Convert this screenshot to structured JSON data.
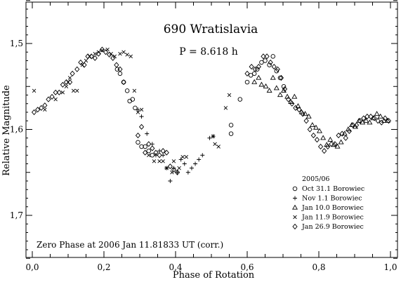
{
  "chart_data": {
    "type": "scatter",
    "title": "690 Wratislavia",
    "subtitle": "P = 8.618 h",
    "xlabel": "Phase of Rotation",
    "ylabel": "Relative Magnitude",
    "xlim": [
      0.0,
      1.0
    ],
    "ylim": [
      1.75,
      1.45
    ],
    "y_inverted": true,
    "xticks": [
      0.0,
      0.2,
      0.4,
      0.6,
      0.8,
      1.0
    ],
    "xtick_labels": [
      "0,0",
      "0,2",
      "0,4",
      "0,6",
      "0,8",
      "1,0"
    ],
    "yticks": [
      1.5,
      1.6,
      1.7
    ],
    "ytick_labels": [
      "1,5",
      "1,6",
      "1,7"
    ],
    "legend_title": "2005/06",
    "legend_placement": "bottom-right",
    "annotation": "Zero Phase at 2006 Jan 11.81833 UT (corr.)",
    "series": [
      {
        "name": "Oct 31.1 Borowiec",
        "marker": "circle",
        "points": [
          [
            0.237,
            1.53
          ],
          [
            0.245,
            1.535
          ],
          [
            0.255,
            1.545
          ],
          [
            0.265,
            1.555
          ],
          [
            0.272,
            1.567
          ],
          [
            0.28,
            1.565
          ],
          [
            0.287,
            1.575
          ],
          [
            0.295,
            1.615
          ],
          [
            0.305,
            1.62
          ],
          [
            0.315,
            1.62
          ],
          [
            0.325,
            1.625
          ],
          [
            0.335,
            1.63
          ],
          [
            0.555,
            1.595
          ],
          [
            0.555,
            1.605
          ],
          [
            0.58,
            1.565
          ],
          [
            0.6,
            1.545
          ],
          [
            0.61,
            1.537
          ],
          [
            0.62,
            1.535
          ],
          [
            0.628,
            1.53
          ],
          [
            0.64,
            1.522
          ],
          [
            0.65,
            1.52
          ],
          [
            0.662,
            1.525
          ],
          [
            0.672,
            1.515
          ],
          [
            0.682,
            1.532
          ],
          [
            0.692,
            1.54
          ],
          [
            0.702,
            1.55
          ]
        ]
      },
      {
        "name": "Nov 1.1 Borowiec",
        "marker": "plus",
        "points": [
          [
            0.295,
            1.577
          ],
          [
            0.305,
            1.585
          ],
          [
            0.32,
            1.605
          ],
          [
            0.335,
            1.617
          ],
          [
            0.345,
            1.63
          ],
          [
            0.355,
            1.625
          ],
          [
            0.365,
            1.63
          ],
          [
            0.375,
            1.645
          ],
          [
            0.385,
            1.66
          ],
          [
            0.395,
            1.645
          ],
          [
            0.405,
            1.65
          ],
          [
            0.415,
            1.635
          ],
          [
            0.425,
            1.64
          ],
          [
            0.435,
            1.65
          ],
          [
            0.445,
            1.645
          ],
          [
            0.455,
            1.64
          ],
          [
            0.465,
            1.635
          ],
          [
            0.475,
            1.63
          ],
          [
            0.495,
            1.61
          ],
          [
            0.505,
            1.608
          ]
        ]
      },
      {
        "name": "Jan 10.0 Borowiec",
        "marker": "triangle",
        "points": [
          [
            0.62,
            1.545
          ],
          [
            0.632,
            1.54
          ],
          [
            0.64,
            1.548
          ],
          [
            0.652,
            1.55
          ],
          [
            0.662,
            1.555
          ],
          [
            0.672,
            1.54
          ],
          [
            0.682,
            1.552
          ],
          [
            0.692,
            1.56
          ],
          [
            0.702,
            1.555
          ],
          [
            0.712,
            1.562
          ],
          [
            0.722,
            1.568
          ],
          [
            0.732,
            1.562
          ],
          [
            0.742,
            1.573
          ],
          [
            0.752,
            1.58
          ],
          [
            0.762,
            1.582
          ],
          [
            0.772,
            1.585
          ],
          [
            0.782,
            1.595
          ],
          [
            0.792,
            1.598
          ],
          [
            0.802,
            1.602
          ],
          [
            0.812,
            1.61
          ],
          [
            0.822,
            1.618
          ],
          [
            0.832,
            1.612
          ],
          [
            0.842,
            1.618
          ],
          [
            0.852,
            1.62
          ],
          [
            0.862,
            1.615
          ],
          [
            0.872,
            1.605
          ],
          [
            0.882,
            1.6
          ],
          [
            0.892,
            1.595
          ],
          [
            0.902,
            1.597
          ],
          [
            0.912,
            1.59
          ],
          [
            0.922,
            1.592
          ],
          [
            0.932,
            1.59
          ],
          [
            0.942,
            1.592
          ],
          [
            0.952,
            1.587
          ],
          [
            0.962,
            1.582
          ],
          [
            0.972,
            1.585
          ],
          [
            0.982,
            1.59
          ],
          [
            0.992,
            1.59
          ]
        ]
      },
      {
        "name": "Jan 11.9 Borowiec",
        "marker": "x",
        "points": [
          [
            0.005,
            1.555
          ],
          [
            0.035,
            1.577
          ],
          [
            0.065,
            1.565
          ],
          [
            0.085,
            1.557
          ],
          [
            0.095,
            1.55
          ],
          [
            0.1,
            1.545
          ],
          [
            0.105,
            1.54
          ],
          [
            0.115,
            1.555
          ],
          [
            0.125,
            1.555
          ],
          [
            0.14,
            1.525
          ],
          [
            0.15,
            1.52
          ],
          [
            0.16,
            1.515
          ],
          [
            0.175,
            1.512
          ],
          [
            0.185,
            1.51
          ],
          [
            0.195,
            1.508
          ],
          [
            0.21,
            1.507
          ],
          [
            0.22,
            1.512
          ],
          [
            0.23,
            1.515
          ],
          [
            0.245,
            1.512
          ],
          [
            0.255,
            1.51
          ],
          [
            0.265,
            1.513
          ],
          [
            0.275,
            1.515
          ],
          [
            0.285,
            1.555
          ],
          [
            0.295,
            1.58
          ],
          [
            0.305,
            1.577
          ],
          [
            0.325,
            1.63
          ],
          [
            0.34,
            1.637
          ],
          [
            0.355,
            1.637
          ],
          [
            0.365,
            1.637
          ],
          [
            0.375,
            1.645
          ],
          [
            0.39,
            1.65
          ],
          [
            0.395,
            1.637
          ],
          [
            0.41,
            1.645
          ],
          [
            0.42,
            1.632
          ],
          [
            0.43,
            1.632
          ],
          [
            0.505,
            1.608
          ],
          [
            0.51,
            1.617
          ],
          [
            0.52,
            1.62
          ],
          [
            0.54,
            1.575
          ],
          [
            0.55,
            1.56
          ]
        ]
      },
      {
        "name": "Jan 26.9 Borowiec",
        "marker": "diamond",
        "points": [
          [
            0.005,
            1.58
          ],
          [
            0.015,
            1.577
          ],
          [
            0.025,
            1.575
          ],
          [
            0.035,
            1.572
          ],
          [
            0.045,
            1.565
          ],
          [
            0.055,
            1.562
          ],
          [
            0.065,
            1.557
          ],
          [
            0.075,
            1.557
          ],
          [
            0.085,
            1.548
          ],
          [
            0.095,
            1.545
          ],
          [
            0.105,
            1.545
          ],
          [
            0.112,
            1.535
          ],
          [
            0.125,
            1.53
          ],
          [
            0.135,
            1.522
          ],
          [
            0.145,
            1.525
          ],
          [
            0.155,
            1.515
          ],
          [
            0.165,
            1.515
          ],
          [
            0.175,
            1.517
          ],
          [
            0.185,
            1.512
          ],
          [
            0.195,
            1.507
          ],
          [
            0.205,
            1.51
          ],
          [
            0.215,
            1.513
          ],
          [
            0.225,
            1.517
          ],
          [
            0.235,
            1.525
          ],
          [
            0.245,
            1.53
          ],
          [
            0.255,
            1.545
          ],
          [
            0.295,
            1.607
          ],
          [
            0.305,
            1.597
          ],
          [
            0.315,
            1.627
          ],
          [
            0.325,
            1.617
          ],
          [
            0.335,
            1.622
          ],
          [
            0.345,
            1.627
          ],
          [
            0.355,
            1.63
          ],
          [
            0.365,
            1.625
          ],
          [
            0.375,
            1.627
          ],
          [
            0.385,
            1.643
          ],
          [
            0.395,
            1.647
          ],
          [
            0.405,
            1.65
          ],
          [
            0.6,
            1.535
          ],
          [
            0.612,
            1.527
          ],
          [
            0.622,
            1.53
          ],
          [
            0.632,
            1.527
          ],
          [
            0.645,
            1.515
          ],
          [
            0.655,
            1.515
          ],
          [
            0.665,
            1.522
          ],
          [
            0.675,
            1.527
          ],
          [
            0.685,
            1.53
          ],
          [
            0.695,
            1.54
          ],
          [
            0.705,
            1.553
          ],
          [
            0.715,
            1.565
          ],
          [
            0.725,
            1.57
          ],
          [
            0.735,
            1.575
          ],
          [
            0.745,
            1.577
          ],
          [
            0.755,
            1.582
          ],
          [
            0.765,
            1.59
          ],
          [
            0.775,
            1.6
          ],
          [
            0.785,
            1.607
          ],
          [
            0.795,
            1.612
          ],
          [
            0.805,
            1.62
          ],
          [
            0.815,
            1.625
          ],
          [
            0.825,
            1.62
          ],
          [
            0.835,
            1.617
          ],
          [
            0.845,
            1.617
          ],
          [
            0.855,
            1.607
          ],
          [
            0.865,
            1.605
          ],
          [
            0.875,
            1.61
          ],
          [
            0.885,
            1.602
          ],
          [
            0.895,
            1.595
          ],
          [
            0.905,
            1.595
          ],
          [
            0.915,
            1.59
          ],
          [
            0.925,
            1.587
          ],
          [
            0.935,
            1.585
          ],
          [
            0.945,
            1.585
          ],
          [
            0.955,
            1.587
          ],
          [
            0.965,
            1.59
          ],
          [
            0.975,
            1.592
          ],
          [
            0.985,
            1.587
          ],
          [
            0.995,
            1.59
          ]
        ]
      }
    ]
  }
}
